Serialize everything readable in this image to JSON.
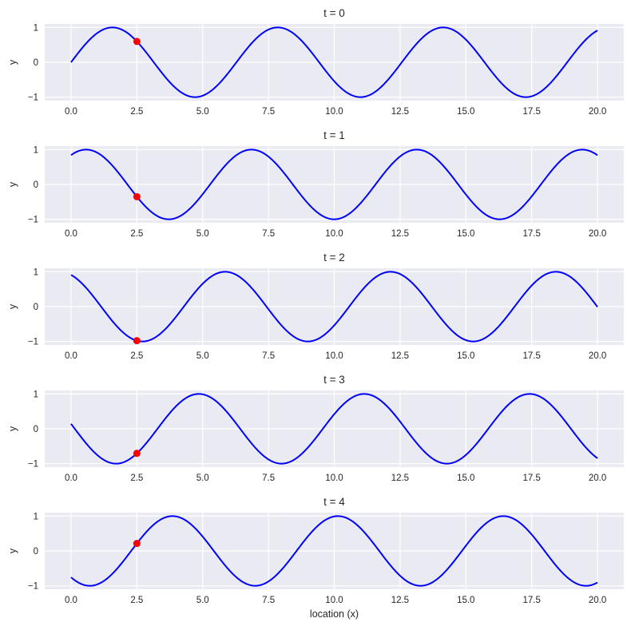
{
  "chart_data": {
    "type": "line",
    "function": "y = sin(x + t)",
    "x_range": [
      0,
      20
    ],
    "xlim": [
      -1,
      21
    ],
    "ylim": [
      -1.1,
      1.1
    ],
    "xticks": [
      0,
      2.5,
      5,
      7.5,
      10,
      12.5,
      15,
      17.5,
      20
    ],
    "xtick_labels": [
      "0.0",
      "2.5",
      "5.0",
      "7.5",
      "10.0",
      "12.5",
      "15.0",
      "17.5",
      "20.0"
    ],
    "yticks": [
      -1,
      0,
      1
    ],
    "ytick_labels": [
      "−1",
      "0",
      "1"
    ],
    "xlabel": "location (x)",
    "ylabel": "y",
    "grid": true,
    "line_color": "#0000ff",
    "marker_color": "#ff0000",
    "background": "#eaeaf2",
    "subplots": [
      {
        "title": "t = 0",
        "t": 0,
        "marker": {
          "x": 2.5,
          "y": 0.598
        }
      },
      {
        "title": "t = 1",
        "t": 1,
        "marker": {
          "x": 2.5,
          "y": -0.351
        }
      },
      {
        "title": "t = 2",
        "t": 2,
        "marker": {
          "x": 2.5,
          "y": -0.978
        }
      },
      {
        "title": "t = 3",
        "t": 3,
        "marker": {
          "x": 2.5,
          "y": -0.706
        }
      },
      {
        "title": "t = 4",
        "t": 4,
        "marker": {
          "x": 2.5,
          "y": 0.215
        }
      }
    ]
  }
}
